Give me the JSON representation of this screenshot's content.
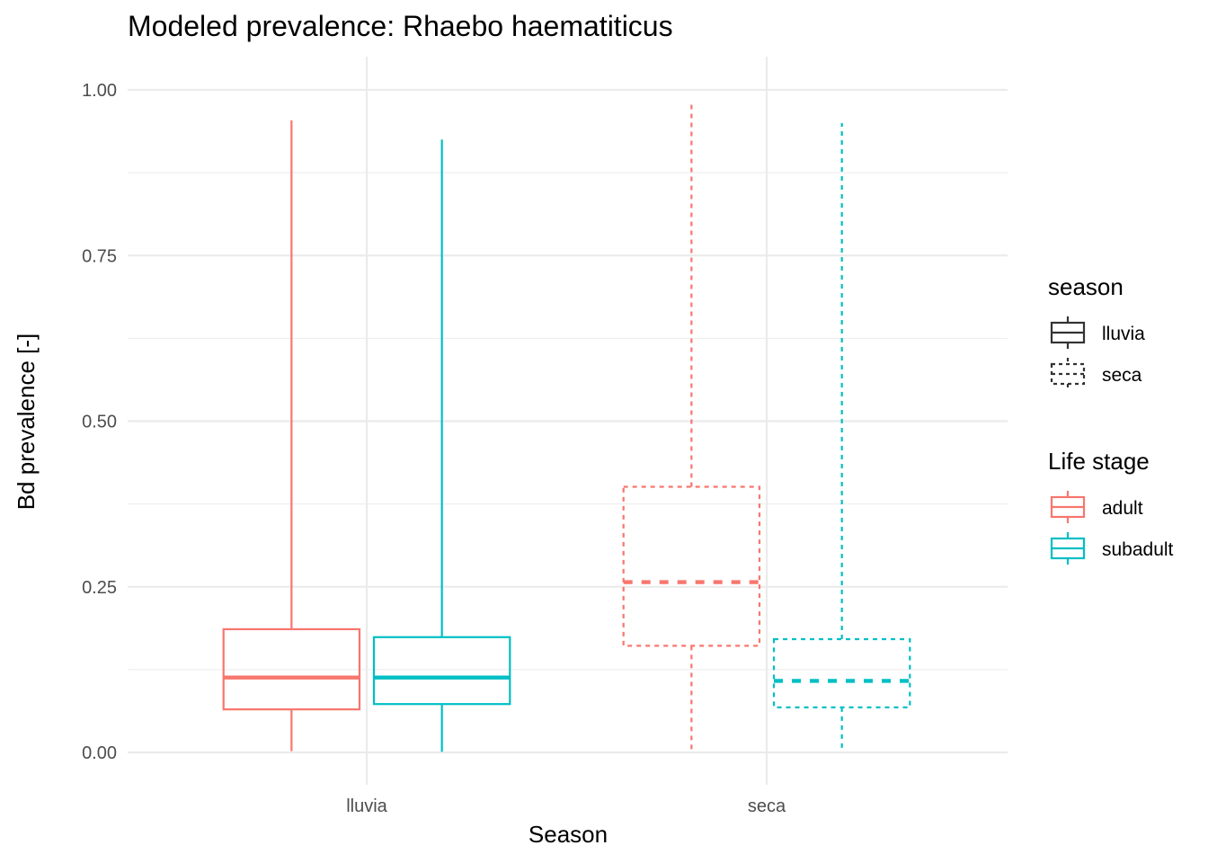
{
  "chart_data": {
    "type": "boxplot",
    "title": "Modeled prevalence: Rhaebo haematiticus",
    "xlabel": "Season",
    "ylabel": "Bd prevalence [-]",
    "categories": [
      "lluvia",
      "seca"
    ],
    "ylim": [
      -0.05,
      1.05
    ],
    "yticks": [
      0.0,
      0.25,
      0.5,
      0.75,
      1.0
    ],
    "ytick_labels": [
      "0.00",
      "0.25",
      "0.50",
      "0.75",
      "1.00"
    ],
    "grid": true,
    "series": [
      {
        "name": "adult",
        "color": "#F8766D",
        "boxes": [
          {
            "category": "lluvia",
            "min": 0.002,
            "q1": 0.065,
            "median": 0.113,
            "q3": 0.186,
            "max": 0.954
          },
          {
            "category": "seca",
            "min": 0.004,
            "q1": 0.161,
            "median": 0.257,
            "q3": 0.401,
            "max": 0.981
          }
        ]
      },
      {
        "name": "subadult",
        "color": "#00BFC4",
        "boxes": [
          {
            "category": "lluvia",
            "min": 0.001,
            "q1": 0.073,
            "median": 0.113,
            "q3": 0.174,
            "max": 0.925
          },
          {
            "category": "seca",
            "min": 0.001,
            "q1": 0.068,
            "median": 0.108,
            "q3": 0.171,
            "max": 0.95
          }
        ]
      }
    ],
    "linetype_by_season": {
      "lluvia": "solid",
      "seca": "dashed"
    },
    "legends": [
      {
        "title": "season",
        "entries": [
          {
            "label": "lluvia",
            "linetype": "solid"
          },
          {
            "label": "seca",
            "linetype": "dashed"
          }
        ]
      },
      {
        "title": "Life stage",
        "entries": [
          {
            "label": "adult",
            "color": "#F8766D"
          },
          {
            "label": "subadult",
            "color": "#00BFC4"
          }
        ]
      }
    ],
    "legend_position": "right"
  }
}
